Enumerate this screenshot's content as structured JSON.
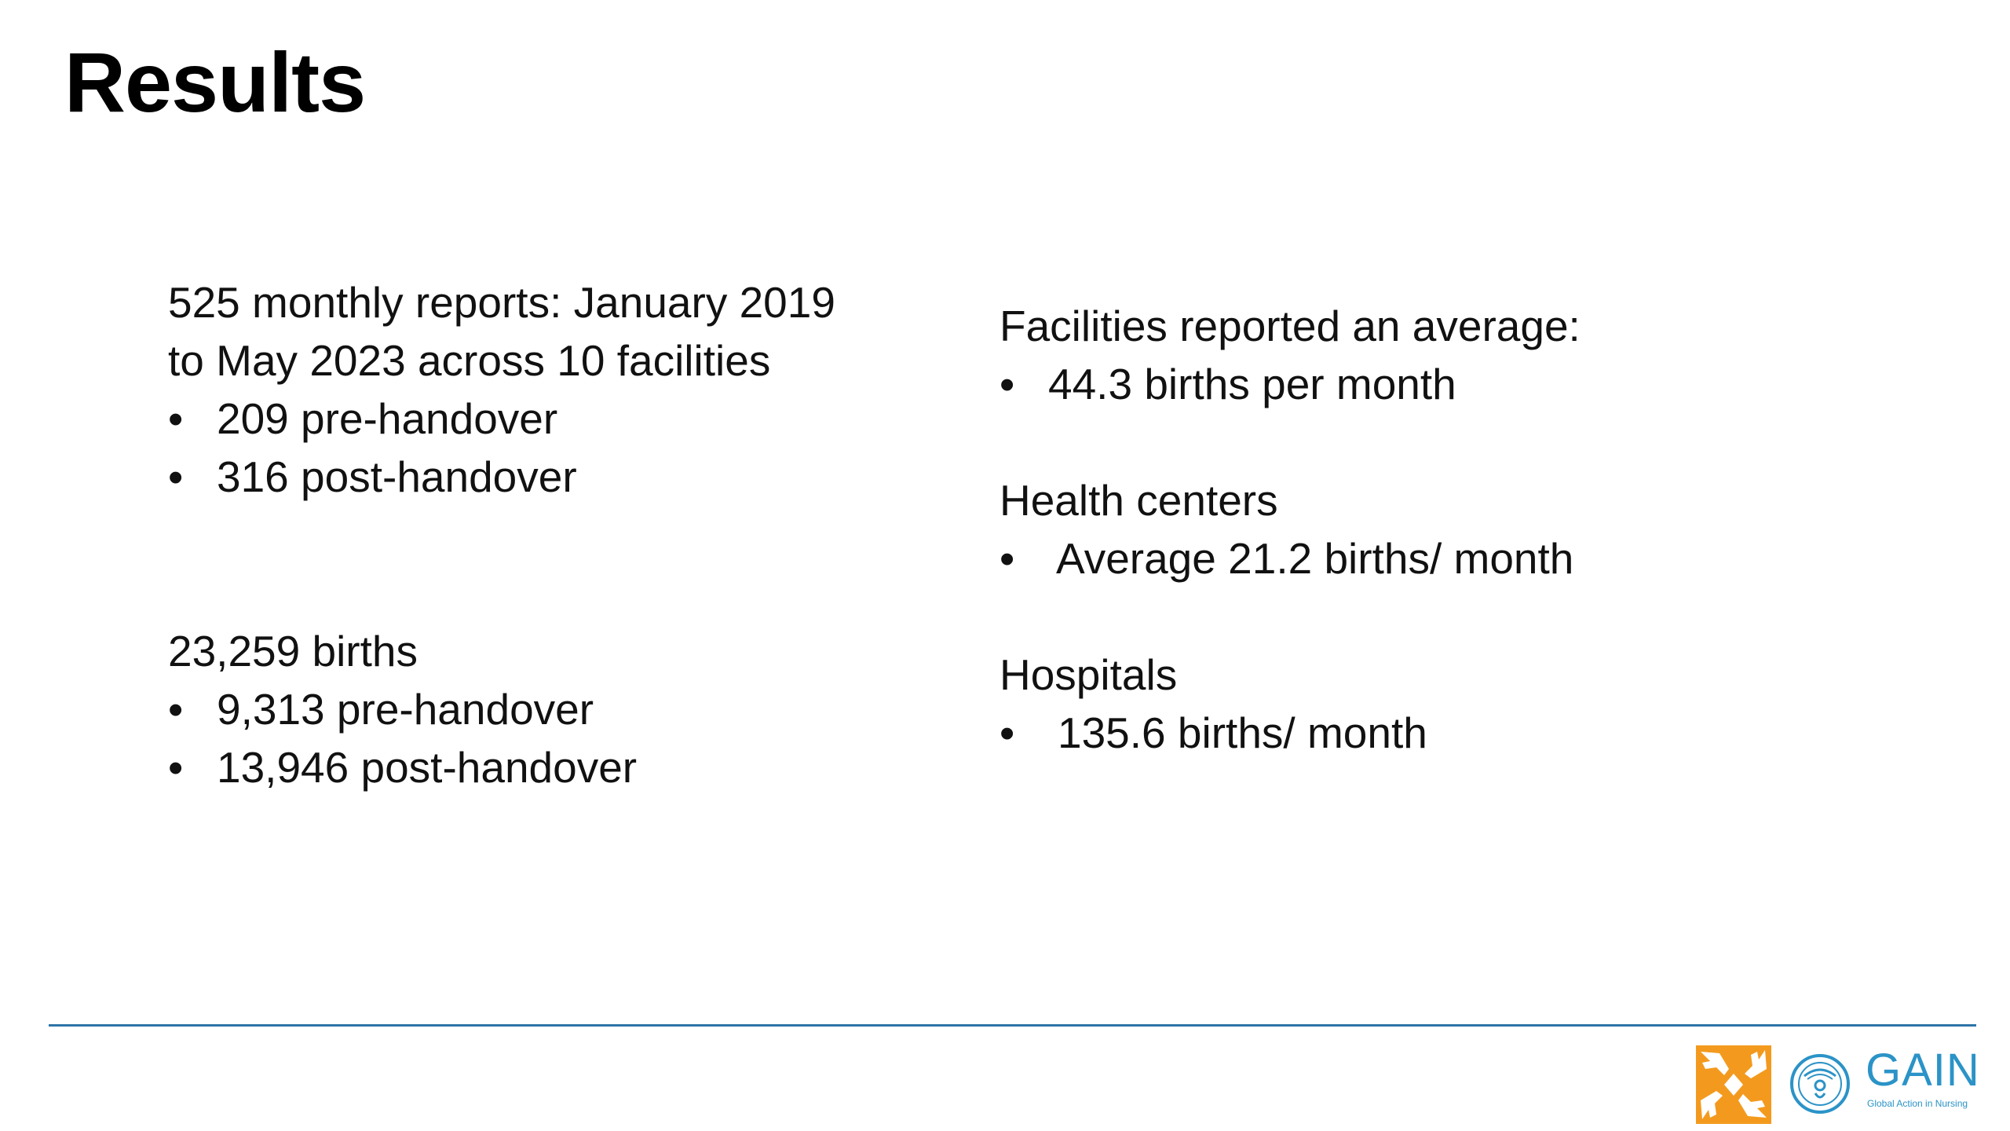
{
  "title": "Results",
  "left": {
    "reports": {
      "line1": "525 monthly reports: January 2019",
      "line2": "to May 2023 across 10 facilities",
      "items": [
        "209 pre-handover",
        "316 post-handover"
      ]
    },
    "births": {
      "heading": "23,259 births",
      "items": [
        "9,313 pre-handover",
        "13,946 post-handover"
      ]
    }
  },
  "right": {
    "facilities": {
      "heading": "Facilities reported an average:",
      "item": "44.3 births per month"
    },
    "health_centers": {
      "heading": "Health centers",
      "item": "Average 21.2 births/ month"
    },
    "hospitals": {
      "heading": "Hospitals",
      "item": "135.6 births/ month"
    }
  },
  "bullet_char": "•",
  "logo": {
    "gain_word": "GAIN",
    "gain_tagline": "Global Action in Nursing"
  },
  "colors": {
    "rule": "#2e74a8",
    "logo_orange": "#f39a1e",
    "logo_blue": "#2b93c7"
  }
}
